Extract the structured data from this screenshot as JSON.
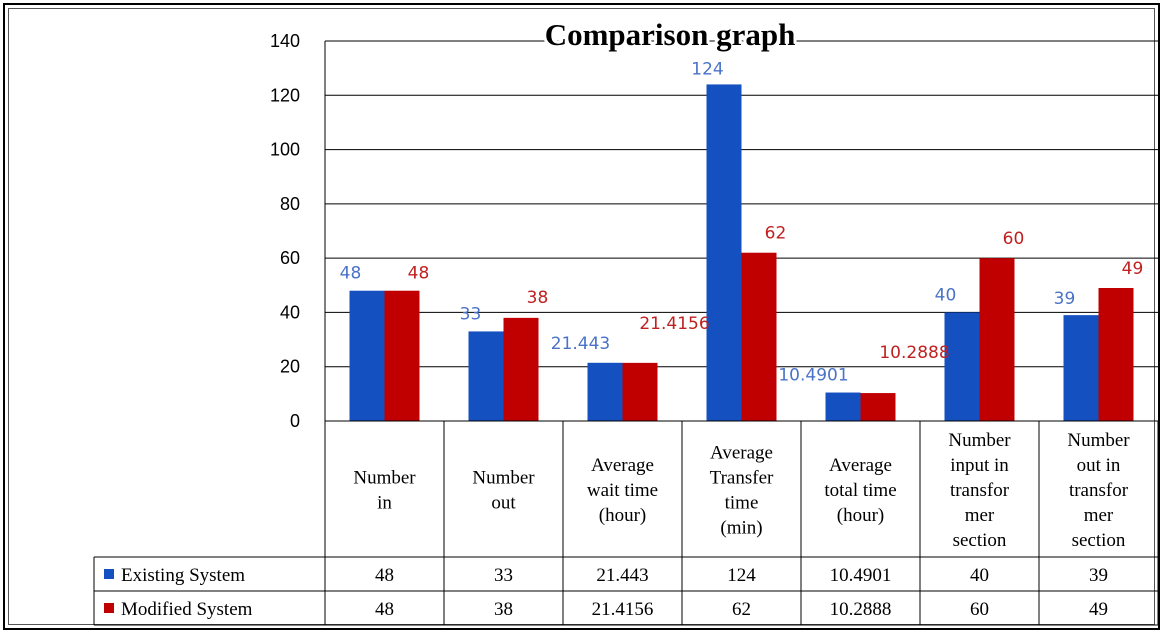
{
  "chart_data": {
    "type": "bar",
    "title": "Comparison graph",
    "categories": [
      [
        "Number",
        "in"
      ],
      [
        "Number",
        "out"
      ],
      [
        "Average",
        "wait time",
        "(hour)"
      ],
      [
        "Average",
        "Transfer",
        "time",
        "(min)"
      ],
      [
        "Average",
        "total time",
        "(hour)"
      ],
      [
        "Number",
        "input  in",
        "transfor",
        "mer",
        "section"
      ],
      [
        "Number",
        "out in",
        "transfor",
        "mer",
        "section"
      ]
    ],
    "series": [
      {
        "name": "Existing System",
        "color": "#1550c0",
        "values": [
          48,
          33,
          21.443,
          124,
          10.4901,
          40,
          39
        ],
        "labels": [
          "48",
          "33",
          "21.443",
          "124",
          "10.4901",
          "40",
          "39"
        ],
        "table": [
          "48",
          "33",
          "21.443",
          "124",
          "10.4901",
          "40",
          "39"
        ]
      },
      {
        "name": "Modified System",
        "color": "#c00000",
        "values": [
          48,
          38,
          21.4156,
          62,
          10.2888,
          60,
          49
        ],
        "labels": [
          "48",
          "38",
          "21.4156",
          "62",
          "10.2888",
          "60",
          "49"
        ],
        "table": [
          "48",
          "38",
          "21.4156",
          "62",
          "10.2888",
          "60",
          "49"
        ]
      }
    ],
    "ylim": [
      0,
      140
    ],
    "yticks": [
      0,
      20,
      40,
      60,
      80,
      100,
      120,
      140
    ],
    "grid": true,
    "legend": "data-table-left"
  }
}
